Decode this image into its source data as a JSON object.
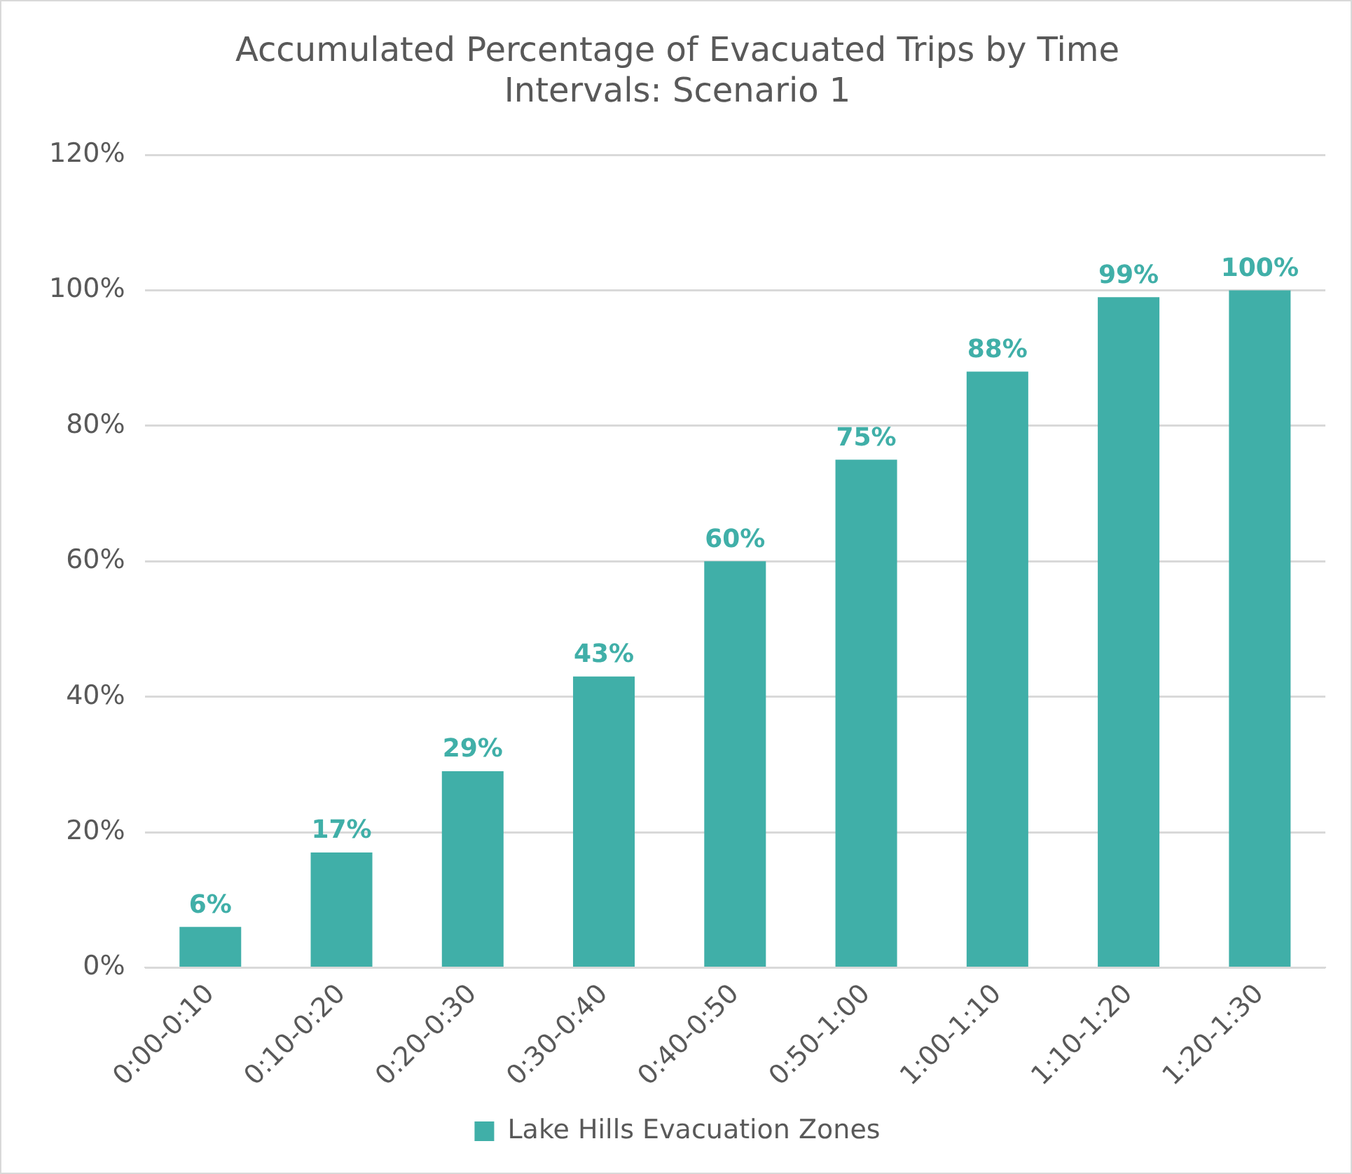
{
  "chart_data": {
    "type": "bar",
    "title": "Accumulated Percentage of Evacuated Trips by Time Intervals: Scenario 1",
    "categories": [
      "0:00-0:10",
      "0:10-0:20",
      "0:20-0:30",
      "0:30-0:40",
      "0:40-0:50",
      "0:50-1:00",
      "1:00-1:10",
      "1:10-1:20",
      "1:20-1:30"
    ],
    "series": [
      {
        "name": "Lake Hills Evacuation Zones",
        "color": "#40afa8",
        "values": [
          6,
          17,
          29,
          43,
          60,
          75,
          88,
          99,
          100
        ],
        "value_labels": [
          "6%",
          "17%",
          "29%",
          "43%",
          "60%",
          "75%",
          "88%",
          "99%",
          "100%"
        ]
      }
    ],
    "ylim": [
      0,
      120
    ],
    "yticks": [
      {
        "value": 0,
        "label": "0%"
      },
      {
        "value": 20,
        "label": "20%"
      },
      {
        "value": 40,
        "label": "40%"
      },
      {
        "value": 60,
        "label": "60%"
      },
      {
        "value": 80,
        "label": "80%"
      },
      {
        "value": 100,
        "label": "100%"
      },
      {
        "value": 120,
        "label": "120%"
      }
    ],
    "grid": "y",
    "legend": "bottom"
  }
}
